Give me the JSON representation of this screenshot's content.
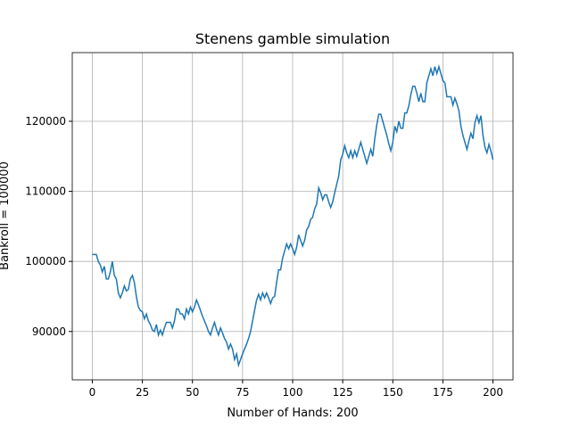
{
  "chart_data": {
    "type": "line",
    "title": "Stenens gamble simulation",
    "xlabel": "Number of Hands: 200",
    "ylabel": "Bankroll = 100000",
    "x": [
      0,
      1,
      2,
      3,
      4,
      5,
      6,
      7,
      8,
      9,
      10,
      11,
      12,
      13,
      14,
      15,
      16,
      17,
      18,
      19,
      20,
      21,
      22,
      23,
      24,
      25,
      26,
      27,
      28,
      29,
      30,
      31,
      32,
      33,
      34,
      35,
      36,
      37,
      38,
      39,
      40,
      41,
      42,
      43,
      44,
      45,
      46,
      47,
      48,
      49,
      50,
      51,
      52,
      53,
      54,
      55,
      56,
      57,
      58,
      59,
      60,
      61,
      62,
      63,
      64,
      65,
      66,
      67,
      68,
      69,
      70,
      71,
      72,
      73,
      74,
      75,
      76,
      77,
      78,
      79,
      80,
      81,
      82,
      83,
      84,
      85,
      86,
      87,
      88,
      89,
      90,
      91,
      92,
      93,
      94,
      95,
      96,
      97,
      98,
      99,
      100,
      101,
      102,
      103,
      104,
      105,
      106,
      107,
      108,
      109,
      110,
      111,
      112,
      113,
      114,
      115,
      116,
      117,
      118,
      119,
      120,
      121,
      122,
      123,
      124,
      125,
      126,
      127,
      128,
      129,
      130,
      131,
      132,
      133,
      134,
      135,
      136,
      137,
      138,
      139,
      140,
      141,
      142,
      143,
      144,
      145,
      146,
      147,
      148,
      149,
      150,
      151,
      152,
      153,
      154,
      155,
      156,
      157,
      158,
      159,
      160,
      161,
      162,
      163,
      164,
      165,
      166,
      167,
      168,
      169,
      170,
      171,
      172,
      173,
      174,
      175,
      176,
      177,
      178,
      179,
      180,
      181,
      182,
      183,
      184,
      185,
      186,
      187,
      188,
      189,
      190,
      191,
      192,
      193,
      194,
      195,
      196,
      197,
      198,
      199,
      200
    ],
    "series": [
      {
        "color": "#1f77b4",
        "values": [
          101000,
          101000,
          101000,
          100000,
          99500,
          98500,
          99300,
          97500,
          97500,
          98500,
          100000,
          98000,
          97500,
          95500,
          94800,
          95500,
          96500,
          95800,
          96000,
          97500,
          98000,
          97000,
          95000,
          93500,
          93000,
          92800,
          91800,
          92500,
          91500,
          91000,
          90200,
          90000,
          91000,
          89500,
          90200,
          89500,
          90500,
          91300,
          91300,
          91300,
          90500,
          91500,
          93200,
          93200,
          92500,
          92500,
          91800,
          93200,
          92500,
          93500,
          92800,
          93500,
          94500,
          93800,
          93000,
          92200,
          91500,
          90800,
          90000,
          89500,
          90500,
          91300,
          90300,
          89500,
          90500,
          89800,
          89000,
          88500,
          87500,
          88200,
          87500,
          86000,
          86800,
          85200,
          86000,
          86800,
          87500,
          88200,
          89000,
          90000,
          91500,
          93000,
          94500,
          95300,
          94500,
          95500,
          94800,
          95500,
          94800,
          94000,
          94800,
          95000,
          97000,
          98800,
          98800,
          100500,
          101500,
          102500,
          101800,
          102500,
          101800,
          101000,
          102000,
          103800,
          103000,
          102200,
          103000,
          104500,
          105000,
          106000,
          106300,
          107500,
          108200,
          110500,
          109800,
          108800,
          109500,
          109500,
          108500,
          107700,
          108500,
          109800,
          111000,
          112200,
          114500,
          115300,
          116500,
          115500,
          114800,
          115800,
          114800,
          115800,
          115000,
          116000,
          117000,
          116000,
          115000,
          114000,
          115000,
          116000,
          115000,
          117500,
          119500,
          121000,
          121000,
          120000,
          119000,
          118000,
          116800,
          115800,
          117000,
          119300,
          118500,
          120000,
          119000,
          119000,
          121200,
          121200,
          122200,
          123800,
          125000,
          125000,
          124000,
          122800,
          124000,
          122800,
          122800,
          125500,
          126500,
          127500,
          126500,
          127800,
          126800,
          127800,
          126800,
          125800,
          125500,
          123500,
          123500,
          123500,
          122300,
          123300,
          122500,
          121500,
          119300,
          118000,
          117000,
          116000,
          117200,
          118300,
          117500,
          119800,
          120800,
          119800,
          120800,
          118000,
          116300,
          115500,
          116700,
          115700,
          114500
        ]
      }
    ],
    "xlim": [
      -10,
      210
    ],
    "ylim": [
      83100,
      129800
    ],
    "xticks": [
      0,
      25,
      50,
      75,
      100,
      125,
      150,
      175,
      200
    ],
    "yticks": [
      90000,
      100000,
      110000,
      120000
    ],
    "grid": true
  }
}
